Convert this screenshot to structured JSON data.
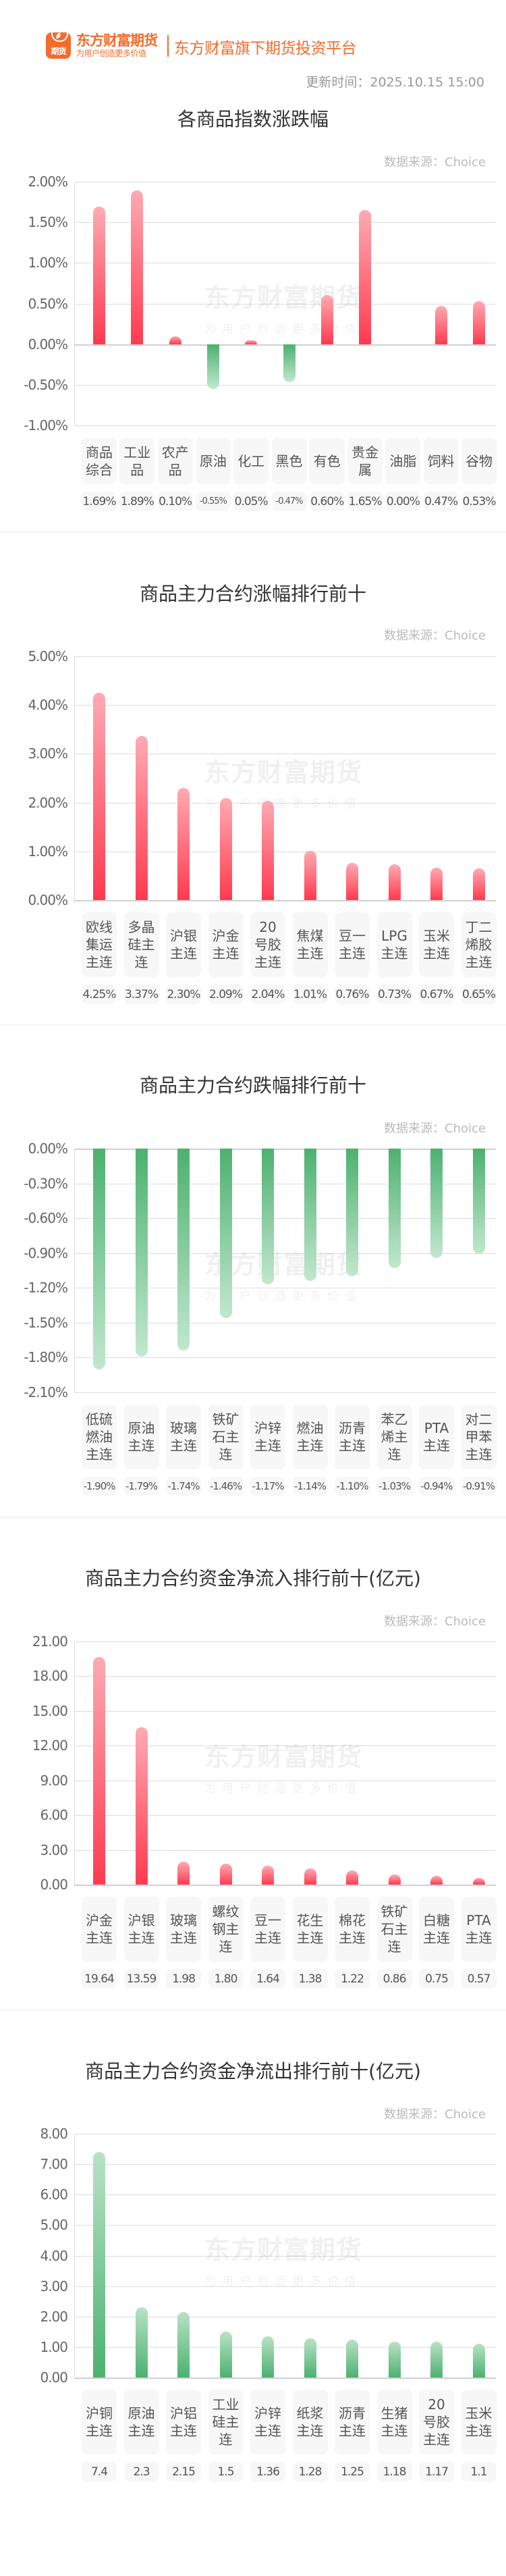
{
  "header": {
    "logo_text": "期货",
    "brand_name": "东方财富期货",
    "brand_slogan": "为用户创造更多价值",
    "platform": "东方财富旗下期货投资平台",
    "update_time": "更新时间：2025.10.15 15:00"
  },
  "watermark": {
    "main": "东方财富期货",
    "sub": "为用户创造更多价值"
  },
  "colors": {
    "brand": "#f36b2d",
    "up": "#ff3a4f",
    "down": "#4cb16f"
  },
  "chart_data": [
    {
      "id": "index_change",
      "type": "bar",
      "title": "各商品指数涨跌幅",
      "source": "数据来源：Choice",
      "ylabel": "",
      "xlabel": "",
      "ylim": [
        -1.0,
        2.0
      ],
      "yticks": [
        "2.00%",
        "1.50%",
        "1.00%",
        "0.50%",
        "0.00%",
        "-0.50%",
        "-1.00%"
      ],
      "ytick_values": [
        2.0,
        1.5,
        1.0,
        0.5,
        0.0,
        -0.5,
        -1.0
      ],
      "grid": true,
      "categories": [
        "商品综合",
        "工业品",
        "农产品",
        "原油",
        "化工",
        "黑色",
        "有色",
        "贵金属",
        "油脂",
        "饲料",
        "谷物"
      ],
      "values": [
        1.69,
        1.89,
        0.1,
        -0.55,
        0.05,
        -0.47,
        0.6,
        1.65,
        0.0,
        0.47,
        0.53
      ],
      "value_labels": [
        "1.69%",
        "1.89%",
        "0.10%",
        "-0.55%",
        "0.05%",
        "-0.47%",
        "0.60%",
        "1.65%",
        "0.00%",
        "0.47%",
        "0.53%"
      ]
    },
    {
      "id": "top_gainers",
      "type": "bar",
      "title": "商品主力合约涨幅排行前十",
      "source": "数据来源：Choice",
      "ylabel": "",
      "xlabel": "",
      "ylim": [
        0,
        5.0
      ],
      "yticks": [
        "5.00%",
        "4.00%",
        "3.00%",
        "2.00%",
        "1.00%",
        "0.00%"
      ],
      "ytick_values": [
        5,
        4,
        3,
        2,
        1,
        0
      ],
      "grid": true,
      "categories": [
        "欧线集运主连",
        "多晶硅主连",
        "沪银主连",
        "沪金主连",
        "20号胶主连",
        "焦煤主连",
        "豆一主连",
        "LPG主连",
        "玉米主连",
        "丁二烯胶主连"
      ],
      "values": [
        4.25,
        3.37,
        2.3,
        2.09,
        2.04,
        1.01,
        0.76,
        0.73,
        0.67,
        0.65
      ],
      "value_labels": [
        "4.25%",
        "3.37%",
        "2.30%",
        "2.09%",
        "2.04%",
        "1.01%",
        "0.76%",
        "0.73%",
        "0.67%",
        "0.65%"
      ]
    },
    {
      "id": "top_losers",
      "type": "bar",
      "title": "商品主力合约跌幅排行前十",
      "source": "数据来源：Choice",
      "ylabel": "",
      "xlabel": "",
      "ylim": [
        -2.1,
        0
      ],
      "yticks": [
        "0.00%",
        "-0.30%",
        "-0.60%",
        "-0.90%",
        "-1.20%",
        "-1.50%",
        "-1.80%",
        "-2.10%"
      ],
      "ytick_values": [
        0,
        -0.3,
        -0.6,
        -0.9,
        -1.2,
        -1.5,
        -1.8,
        -2.1
      ],
      "grid": true,
      "categories": [
        "低硫燃油主连",
        "原油主连",
        "玻璃主连",
        "铁矿石主连",
        "沪锌主连",
        "燃油主连",
        "沥青主连",
        "苯乙烯主连",
        "PTA主连",
        "对二甲苯主连"
      ],
      "values": [
        -1.9,
        -1.79,
        -1.74,
        -1.46,
        -1.17,
        -1.14,
        -1.1,
        -1.03,
        -0.94,
        -0.91
      ],
      "value_labels": [
        "-1.90%",
        "-1.79%",
        "-1.74%",
        "-1.46%",
        "-1.17%",
        "-1.14%",
        "-1.10%",
        "-1.03%",
        "-0.94%",
        "-0.91%"
      ]
    },
    {
      "id": "net_inflow",
      "type": "bar",
      "title": "商品主力合约资金净流入排行前十(亿元)",
      "source": "数据来源：Choice",
      "ylabel": "亿元",
      "xlabel": "",
      "ylim": [
        0,
        21
      ],
      "yticks": [
        "21.00",
        "18.00",
        "15.00",
        "12.00",
        "9.00",
        "6.00",
        "3.00",
        "0.00"
      ],
      "ytick_values": [
        21,
        18,
        15,
        12,
        9,
        6,
        3,
        0
      ],
      "grid": true,
      "categories": [
        "沪金主连",
        "沪银主连",
        "玻璃主连",
        "螺纹钢主连",
        "豆一主连",
        "花生主连",
        "棉花主连",
        "铁矿石主连",
        "白糖主连",
        "PTA主连"
      ],
      "values": [
        19.64,
        13.59,
        1.98,
        1.8,
        1.64,
        1.38,
        1.22,
        0.86,
        0.75,
        0.57
      ],
      "value_labels": [
        "19.64",
        "13.59",
        "1.98",
        "1.80",
        "1.64",
        "1.38",
        "1.22",
        "0.86",
        "0.75",
        "0.57"
      ]
    },
    {
      "id": "net_outflow",
      "type": "bar",
      "title": "商品主力合约资金净流出排行前十(亿元)",
      "source": "数据来源：Choice",
      "ylabel": "亿元",
      "xlabel": "",
      "ylim": [
        0,
        8
      ],
      "yticks": [
        "8.00",
        "7.00",
        "6.00",
        "5.00",
        "4.00",
        "3.00",
        "2.00",
        "1.00",
        "0.00"
      ],
      "ytick_values": [
        8,
        7,
        6,
        5,
        4,
        3,
        2,
        1,
        0
      ],
      "grid": true,
      "categories": [
        "沪铜主连",
        "原油主连",
        "沪铝主连",
        "工业硅主连",
        "沪锌主连",
        "纸浆主连",
        "沥青主连",
        "生猪主连",
        "20号胶主连",
        "玉米主连"
      ],
      "values": [
        7.4,
        2.3,
        2.15,
        1.5,
        1.36,
        1.28,
        1.25,
        1.18,
        1.17,
        1.1
      ],
      "value_labels": [
        "7.4",
        "2.3",
        "2.15",
        "1.5",
        "1.36",
        "1.28",
        "1.25",
        "1.18",
        "1.17",
        "1.1"
      ]
    }
  ]
}
